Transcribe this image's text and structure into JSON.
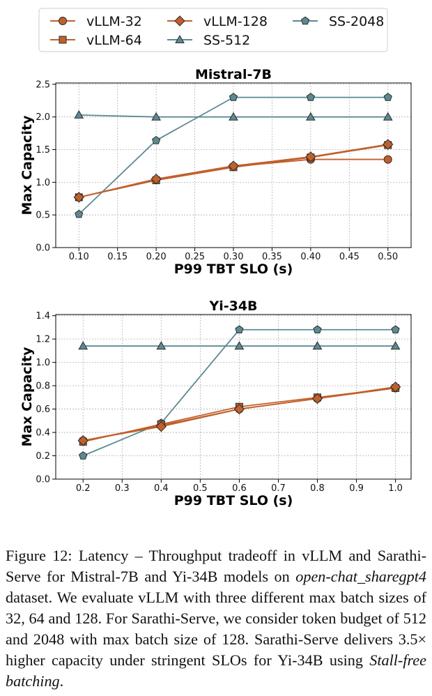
{
  "legend": {
    "entries": [
      {
        "name": "vLLM-32",
        "color": "#c0602b",
        "marker": "circle"
      },
      {
        "name": "vLLM-64",
        "color": "#c0602b",
        "marker": "square"
      },
      {
        "name": "vLLM-128",
        "color": "#c0602b",
        "marker": "diamond"
      },
      {
        "name": "SS-512",
        "color": "#5b8a92",
        "marker": "triangle"
      },
      {
        "name": "SS-2048",
        "color": "#5b8a92",
        "marker": "pentagon"
      }
    ]
  },
  "chart_data": [
    {
      "type": "line",
      "title": "Mistral-7B",
      "xlabel": "P99 TBT SLO (s)",
      "ylabel": "Max Capacity",
      "xlim": [
        0.07,
        0.53
      ],
      "ylim": [
        0,
        2.52
      ],
      "xticks": [
        0.1,
        0.15,
        0.2,
        0.25,
        0.3,
        0.35,
        0.4,
        0.45,
        0.5
      ],
      "xtick_labels": [
        "0.10",
        "0.15",
        "0.20",
        "0.25",
        "0.30",
        "0.35",
        "0.40",
        "0.45",
        "0.50"
      ],
      "yticks": [
        0,
        0.5,
        1.0,
        1.5,
        2.0,
        2.5
      ],
      "ytick_labels": [
        "0.0",
        "0.5",
        "1.0",
        "1.5",
        "2.0",
        "2.5"
      ],
      "grid": true,
      "x": [
        0.1,
        0.2,
        0.3,
        0.4,
        0.5
      ],
      "series": [
        {
          "name": "vLLM-32",
          "values": [
            0.77,
            1.04,
            1.24,
            1.35,
            1.35
          ]
        },
        {
          "name": "vLLM-64",
          "values": [
            0.77,
            1.03,
            1.23,
            1.38,
            1.57
          ]
        },
        {
          "name": "vLLM-128",
          "values": [
            0.77,
            1.05,
            1.25,
            1.39,
            1.58
          ]
        },
        {
          "name": "SS-512",
          "values": [
            2.03,
            2.0,
            2.0,
            2.0,
            2.0
          ]
        },
        {
          "name": "SS-2048",
          "values": [
            0.51,
            1.64,
            2.3,
            2.3,
            2.3
          ]
        }
      ]
    },
    {
      "type": "line",
      "title": "Yi-34B",
      "xlabel": "P99 TBT SLO (s)",
      "ylabel": "Max Capacity",
      "xlim": [
        0.13,
        1.04
      ],
      "ylim": [
        0,
        1.41
      ],
      "xticks": [
        0.2,
        0.3,
        0.4,
        0.5,
        0.6,
        0.7,
        0.8,
        0.9,
        1.0
      ],
      "xtick_labels": [
        "0.2",
        "0.3",
        "0.4",
        "0.5",
        "0.6",
        "0.7",
        "0.8",
        "0.9",
        "1.0"
      ],
      "yticks": [
        0,
        0.2,
        0.4,
        0.6,
        0.8,
        1.0,
        1.2,
        1.4
      ],
      "ytick_labels": [
        "0.0",
        "0.2",
        "0.4",
        "0.6",
        "0.8",
        "1.0",
        "1.2",
        "1.4"
      ],
      "grid": true,
      "x": [
        0.2,
        0.4,
        0.6,
        0.8,
        1.0
      ],
      "series": [
        {
          "name": "vLLM-32",
          "values": [
            0.33,
            0.46,
            0.6,
            0.69,
            0.78
          ]
        },
        {
          "name": "vLLM-64",
          "values": [
            0.32,
            0.47,
            0.62,
            0.7,
            0.78
          ]
        },
        {
          "name": "vLLM-128",
          "values": [
            0.33,
            0.45,
            0.6,
            0.69,
            0.79
          ]
        },
        {
          "name": "SS-512",
          "values": [
            1.14,
            1.14,
            1.14,
            1.14,
            1.14
          ]
        },
        {
          "name": "SS-2048",
          "values": [
            0.2,
            0.48,
            1.28,
            1.28,
            1.28
          ]
        }
      ]
    }
  ],
  "caption": {
    "text_1": "Figure 12: Latency – Throughput tradeoff in vLLM and Sarathi-Serve for Mistral-7B and Yi-34B models on ",
    "dataset": "open-chat_sharegpt4",
    "text_2": " dataset. We evaluate vLLM with three different max batch sizes of 32, 64 and 128. For Sarathi-Serve, we consider token budget of 512 and 2048 with max batch size of 128. Sarathi-Serve delivers 3.5× higher capacity under stringent SLOs for Yi-34B using ",
    "technique": "Stall-free batching",
    "text_3": "."
  }
}
